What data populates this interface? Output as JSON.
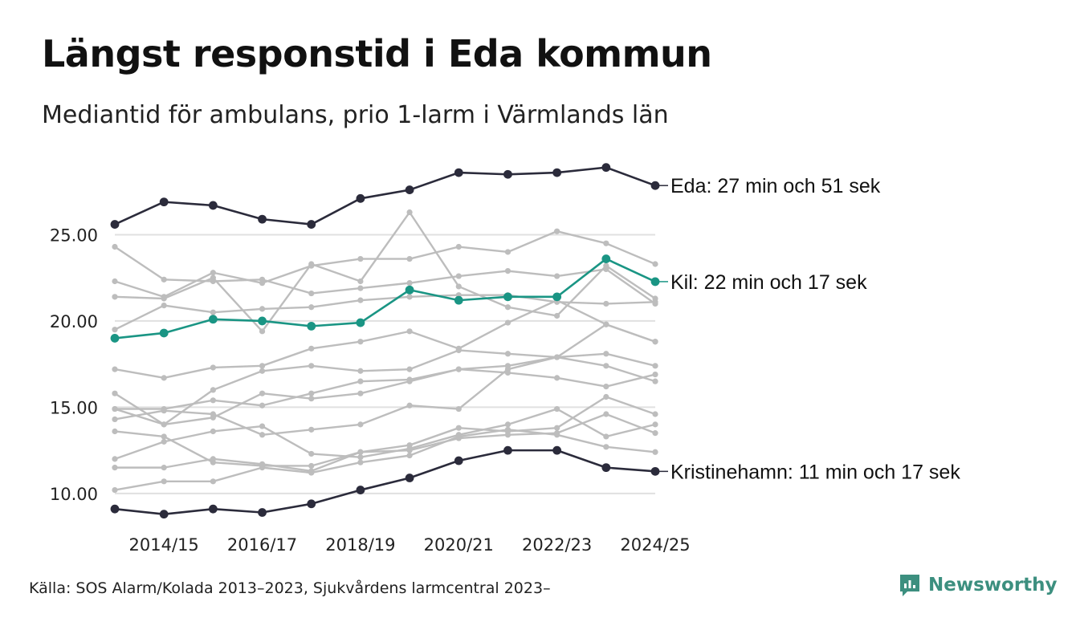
{
  "title": "Längst responstid i Eda kommun",
  "subtitle": "Mediantid för ambulans, prio 1-larm i Värmlands län",
  "source": "Källa: SOS Alarm/Kolada 2013–2023, Sjukvårdens larmcentral 2023–",
  "brand": "Newsworthy",
  "colors": {
    "highlight_dark": "#2b2b3b",
    "highlight_green": "#1a9584",
    "background_series": "#bdbdbd",
    "grid": "#e0e0e0",
    "brand": "#3c8f7f"
  },
  "chart_data": {
    "type": "line",
    "title": "Längst responstid i Eda kommun",
    "xlabel": "",
    "ylabel": "",
    "ylim": [
      7.9,
      30
    ],
    "yticks": [
      10,
      15,
      20,
      25
    ],
    "ytick_labels": [
      "10.00",
      "15.00",
      "20.00",
      "25.00"
    ],
    "x": [
      "2013/14",
      "2014/15",
      "2015/16",
      "2016/17",
      "2017/18",
      "2018/19",
      "2019/20",
      "2020/21",
      "2021/22",
      "2022/23",
      "2023/24",
      "2024/25"
    ],
    "xtick_labels": [
      "2014/15",
      "2016/17",
      "2018/19",
      "2020/21",
      "2022/23",
      "2024/25"
    ],
    "grid": "horizontal",
    "highlight_series": [
      {
        "name": "Eda",
        "label": "Eda: 27 min och 51 sek",
        "color": "#2b2b3b",
        "values": [
          25.6,
          26.9,
          26.7,
          25.9,
          25.6,
          27.1,
          27.6,
          28.6,
          28.5,
          28.6,
          28.9,
          27.85
        ]
      },
      {
        "name": "Kil",
        "label": "Kil: 22 min och 17 sek",
        "color": "#1a9584",
        "values": [
          19.0,
          19.3,
          20.1,
          20.0,
          19.7,
          19.9,
          21.8,
          21.2,
          21.4,
          21.4,
          23.6,
          22.28
        ]
      },
      {
        "name": "Kristinehamn",
        "label": "Kristinehamn: 11 min och 17 sek",
        "color": "#2b2b3b",
        "values": [
          9.1,
          8.8,
          9.1,
          8.9,
          9.4,
          10.2,
          10.9,
          11.9,
          12.5,
          12.5,
          11.5,
          11.28
        ]
      }
    ],
    "series": [
      {
        "name": "Kommun A",
        "values": [
          24.3,
          22.4,
          22.3,
          22.4,
          21.6,
          21.9,
          22.2,
          22.6,
          22.9,
          22.6,
          23.0,
          21.0
        ]
      },
      {
        "name": "Kommun B",
        "values": [
          22.3,
          21.4,
          22.8,
          22.2,
          23.2,
          23.6,
          23.6,
          24.3,
          24.0,
          25.2,
          24.5,
          23.3
        ]
      },
      {
        "name": "Kommun C",
        "values": [
          21.4,
          21.3,
          22.5,
          19.4,
          23.3,
          22.3,
          26.3,
          22.0,
          20.8,
          20.3,
          23.2,
          21.3
        ]
      },
      {
        "name": "Kommun D",
        "values": [
          19.5,
          20.9,
          20.5,
          20.7,
          20.8,
          21.2,
          21.4,
          21.5,
          21.5,
          21.1,
          21.0,
          21.1
        ]
      },
      {
        "name": "Kommun E",
        "values": [
          17.2,
          16.7,
          17.3,
          17.4,
          18.4,
          18.8,
          19.4,
          18.4,
          19.9,
          21.2,
          19.8,
          18.8
        ]
      },
      {
        "name": "Kommun F",
        "values": [
          15.8,
          14.0,
          16.0,
          17.1,
          17.4,
          17.1,
          17.2,
          18.3,
          18.1,
          17.9,
          18.1,
          17.4
        ]
      },
      {
        "name": "Kommun G",
        "values": [
          14.9,
          14.9,
          15.4,
          15.1,
          15.8,
          16.5,
          16.6,
          17.2,
          17.4,
          17.9,
          17.4,
          16.5
        ]
      },
      {
        "name": "Kommun H",
        "values": [
          14.9,
          14.0,
          14.4,
          15.8,
          15.5,
          15.8,
          16.5,
          17.2,
          17.0,
          16.7,
          16.2,
          16.9
        ]
      },
      {
        "name": "Kommun I",
        "values": [
          14.3,
          14.8,
          14.6,
          13.4,
          13.7,
          14.0,
          15.1,
          14.9,
          17.2,
          17.9,
          19.8,
          18.8
        ]
      },
      {
        "name": "Kommun J",
        "values": [
          13.6,
          13.3,
          11.8,
          11.6,
          11.6,
          12.4,
          12.8,
          13.8,
          13.6,
          13.8,
          15.6,
          14.6
        ]
      },
      {
        "name": "Kommun K",
        "values": [
          12.0,
          13.0,
          13.6,
          13.9,
          12.3,
          12.1,
          12.6,
          13.4,
          14.0,
          14.9,
          13.3,
          14.0
        ]
      },
      {
        "name": "Kommun L",
        "values": [
          11.5,
          11.5,
          12.0,
          11.7,
          11.3,
          12.4,
          12.5,
          13.2,
          13.4,
          13.5,
          14.6,
          13.5
        ]
      },
      {
        "name": "Kommun M",
        "values": [
          10.2,
          10.7,
          10.7,
          11.5,
          11.2,
          11.8,
          12.2,
          13.3,
          13.7,
          13.4,
          12.7,
          12.4
        ]
      }
    ]
  }
}
